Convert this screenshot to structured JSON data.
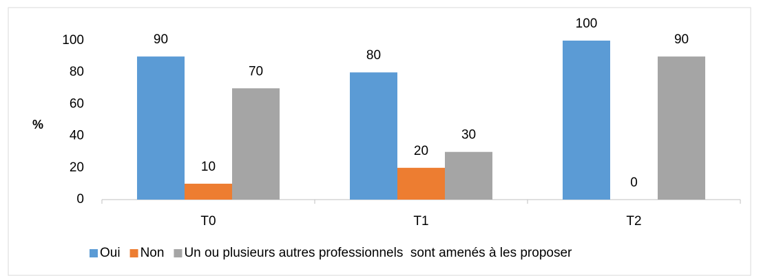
{
  "chart_data": {
    "type": "bar",
    "categories": [
      "T0",
      "T1",
      "T2"
    ],
    "series": [
      {
        "name": "Oui",
        "color": "#5b9bd5",
        "values": [
          90,
          80,
          100
        ]
      },
      {
        "name": "Non",
        "color": "#ed7d31",
        "values": [
          10,
          20,
          0
        ]
      },
      {
        "name": "Un ou plusieurs autres professionnels  sont amenés à les proposer",
        "color": "#a5a5a5",
        "values": [
          70,
          30,
          90
        ]
      }
    ],
    "y_label": "%",
    "ylim": [
      0,
      100
    ],
    "yticks": [
      0,
      20,
      40,
      60,
      80,
      100
    ],
    "grid": false,
    "legend": "bottom",
    "data_labels": true
  }
}
